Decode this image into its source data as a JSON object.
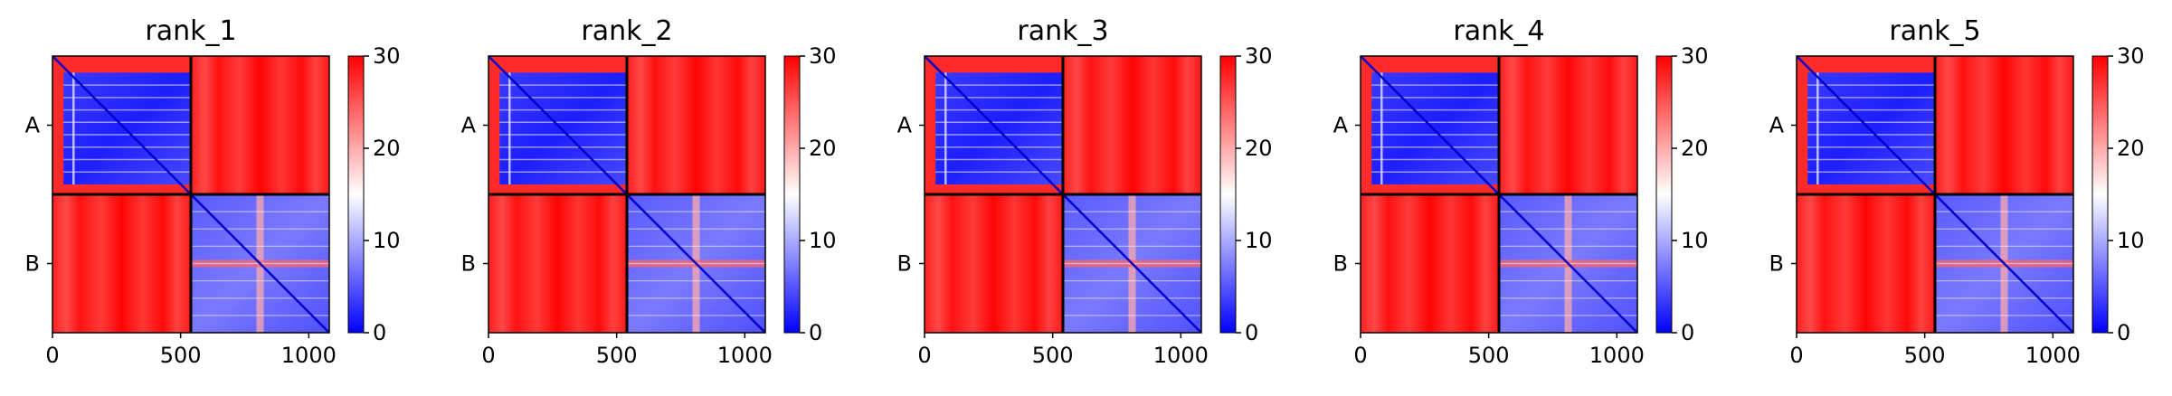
{
  "chart_data": [
    {
      "type": "heatmap",
      "title": "rank_1",
      "chains": [
        "A",
        "B"
      ],
      "chain_boundary": 540,
      "xlim": [
        0,
        1080
      ],
      "xticks": [
        0,
        500,
        1000
      ],
      "colorbar": {
        "min": 0,
        "max": 30,
        "ticks": [
          0,
          10,
          20,
          30
        ],
        "colormap": "bwr"
      },
      "grid": false
    },
    {
      "type": "heatmap",
      "title": "rank_2",
      "chains": [
        "A",
        "B"
      ],
      "chain_boundary": 540,
      "xlim": [
        0,
        1080
      ],
      "xticks": [
        0,
        500,
        1000
      ],
      "colorbar": {
        "min": 0,
        "max": 30,
        "ticks": [
          0,
          10,
          20,
          30
        ],
        "colormap": "bwr"
      },
      "grid": false
    },
    {
      "type": "heatmap",
      "title": "rank_3",
      "chains": [
        "A",
        "B"
      ],
      "chain_boundary": 540,
      "xlim": [
        0,
        1080
      ],
      "xticks": [
        0,
        500,
        1000
      ],
      "colorbar": {
        "min": 0,
        "max": 30,
        "ticks": [
          0,
          10,
          20,
          30
        ],
        "colormap": "bwr"
      },
      "grid": false
    },
    {
      "type": "heatmap",
      "title": "rank_4",
      "chains": [
        "A",
        "B"
      ],
      "chain_boundary": 540,
      "xlim": [
        0,
        1080
      ],
      "xticks": [
        0,
        500,
        1000
      ],
      "colorbar": {
        "min": 0,
        "max": 30,
        "ticks": [
          0,
          10,
          20,
          30
        ],
        "colormap": "bwr"
      },
      "grid": false
    },
    {
      "type": "heatmap",
      "title": "rank_5",
      "chains": [
        "A",
        "B"
      ],
      "chain_boundary": 540,
      "xlim": [
        0,
        1080
      ],
      "xticks": [
        0,
        500,
        1000
      ],
      "colorbar": {
        "min": 0,
        "max": 30,
        "ticks": [
          0,
          10,
          20,
          30
        ],
        "colormap": "bwr"
      },
      "grid": false
    }
  ],
  "colors": {
    "low": "#0000ff",
    "mid": "#ffffff",
    "high": "#ff0000",
    "boundary": "#000000"
  }
}
